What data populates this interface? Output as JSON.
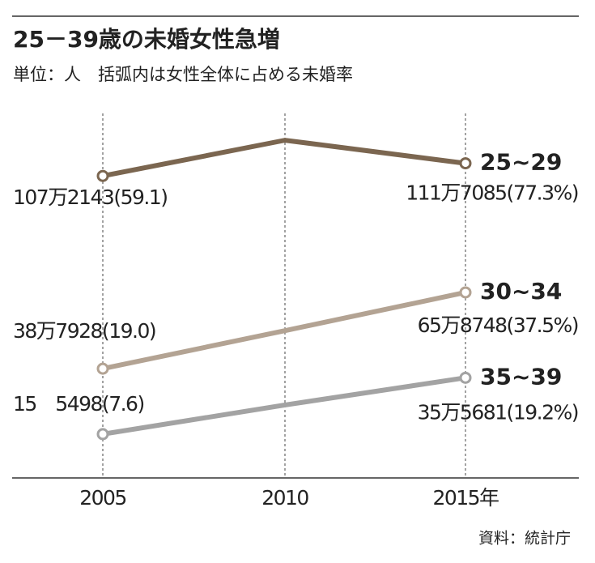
{
  "chart_data": {
    "type": "line",
    "title": "25－39歳の未婚女性急増",
    "subtitle": "単位：人　括弧内は女性全体に占める未婚率",
    "source": "資料：統計庁",
    "categories": [
      "2005",
      "2010",
      "2015年"
    ],
    "ylim": [
      0,
      1300000
    ],
    "series": [
      {
        "name": "25~29",
        "color": "#7b6650",
        "values": [
          1072143,
          1199000,
          1117085
        ],
        "value_labels": [
          "107万2143(59.1)",
          null,
          "111万7085(77.3%)"
        ]
      },
      {
        "name": "30~34",
        "color": "#b3a393",
        "values": [
          387928,
          523000,
          658748
        ],
        "value_labels": [
          "38万7928(19.0)",
          null,
          "65万8748(37.5%)"
        ]
      },
      {
        "name": "35~39",
        "color": "#a3a3a3",
        "values": [
          155498,
          259000,
          355681
        ],
        "value_labels": [
          "15　5498(7.6)",
          null,
          "35万5681(19.2%)"
        ]
      }
    ]
  }
}
